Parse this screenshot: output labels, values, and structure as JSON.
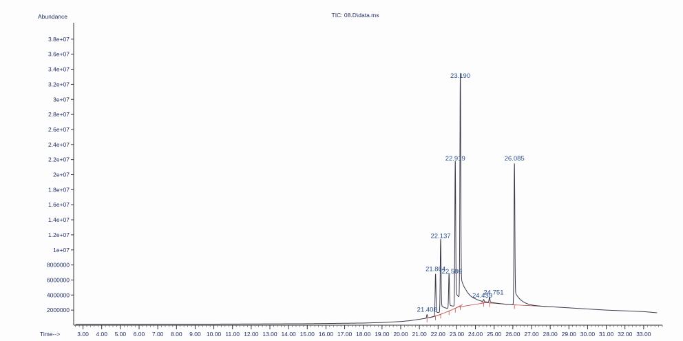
{
  "chart_data": {
    "type": "line",
    "title": "TIC: 08.D\\data.ms",
    "ylabel": "Abundance",
    "xlabel": "Time-->",
    "xlim": [
      2.5,
      34.0
    ],
    "ylim": [
      0,
      40000000
    ],
    "x_ticks": [
      3,
      4,
      5,
      6,
      7,
      8,
      9,
      10,
      11,
      12,
      13,
      14,
      15,
      16,
      17,
      18,
      19,
      20,
      21,
      22,
      23,
      24,
      25,
      26,
      27,
      28,
      29,
      30,
      31,
      32,
      33
    ],
    "x_tick_labels": [
      "3.00",
      "4.00",
      "5.00",
      "6.00",
      "7.00",
      "8.00",
      "9.00",
      "10.00",
      "11.00",
      "12.00",
      "13.00",
      "14.00",
      "15.00",
      "16.00",
      "17.00",
      "18.00",
      "19.00",
      "20.00",
      "21.00",
      "22.00",
      "23.00",
      "24.00",
      "25.00",
      "26.00",
      "27.00",
      "28.00",
      "29.00",
      "30.00",
      "31.00",
      "32.00",
      "33.00"
    ],
    "y_ticks": [
      2000000,
      4000000,
      6000000,
      8000000,
      10000000,
      12000000,
      14000000,
      16000000,
      18000000,
      20000000,
      22000000,
      24000000,
      26000000,
      28000000,
      30000000,
      32000000,
      34000000,
      36000000,
      38000000
    ],
    "y_tick_labels": [
      "2000000",
      "4000000",
      "6000000",
      "8000000",
      "1e+07",
      "1.2e+07",
      "1.4e+07",
      "1.6e+07",
      "1.8e+07",
      "2e+07",
      "2.2e+07",
      "2.4e+07",
      "2.6e+07",
      "2.8e+07",
      "3e+07",
      "3.2e+07",
      "3.4e+07",
      "3.6e+07",
      "3.8e+07"
    ],
    "peaks": [
      {
        "label": "21.408",
        "x": 21.408,
        "y": 1400000
      },
      {
        "label": "21.864",
        "x": 21.864,
        "y": 6800000
      },
      {
        "label": "22.137",
        "x": 22.137,
        "y": 11200000
      },
      {
        "label": "22.586",
        "x": 22.586,
        "y": 6500000
      },
      {
        "label": "22.919",
        "x": 22.919,
        "y": 21500000
      },
      {
        "label": "23.190",
        "x": 23.19,
        "y": 32500000
      },
      {
        "label": "24.439",
        "x": 24.439,
        "y": 3300000
      },
      {
        "label": "24.751",
        "x": 24.751,
        "y": 3700000
      },
      {
        "label": "26.085",
        "x": 26.085,
        "y": 21500000
      }
    ],
    "baseline": [
      [
        2.6,
        120000
      ],
      [
        10.0,
        140000
      ],
      [
        15.0,
        190000
      ],
      [
        18.0,
        280000
      ],
      [
        19.0,
        350000
      ],
      [
        20.0,
        480000
      ],
      [
        20.5,
        600000
      ],
      [
        21.0,
        780000
      ],
      [
        21.3,
        900000
      ],
      [
        21.6,
        1000000
      ],
      [
        22.0,
        1300000
      ],
      [
        23.0,
        2300000
      ],
      [
        23.5,
        3000000
      ],
      [
        24.0,
        3100000
      ],
      [
        25.0,
        2900000
      ],
      [
        26.0,
        2700000
      ],
      [
        27.0,
        2550000
      ],
      [
        28.0,
        2450000
      ],
      [
        29.0,
        2300000
      ],
      [
        30.0,
        2150000
      ],
      [
        31.0,
        2000000
      ],
      [
        32.0,
        1900000
      ],
      [
        33.0,
        1800000
      ],
      [
        33.7,
        1650000
      ]
    ],
    "grid": false,
    "legend": "none"
  }
}
